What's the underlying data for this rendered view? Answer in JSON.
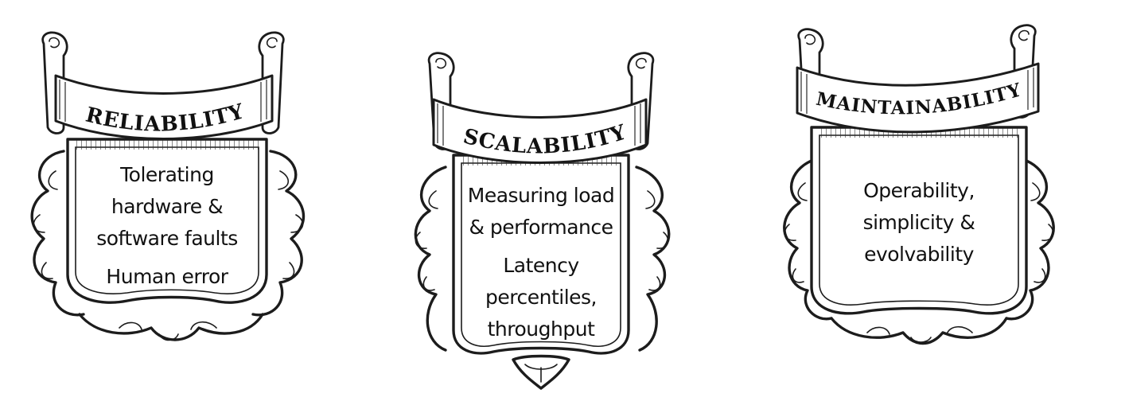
{
  "shields": [
    {
      "title": "RELIABILITY",
      "lines": [
        "Tolerating",
        "hardware &",
        "software faults"
      ],
      "extra": [
        "Human error"
      ]
    },
    {
      "title": "SCALABILITY",
      "lines": [
        "Measuring load",
        "& performance"
      ],
      "extra": [
        "Latency",
        "percentiles,",
        "throughput"
      ]
    },
    {
      "title": "MAINTAINABILITY",
      "lines": [
        "Operability,",
        "simplicity &",
        "evolvability"
      ],
      "extra": []
    }
  ]
}
